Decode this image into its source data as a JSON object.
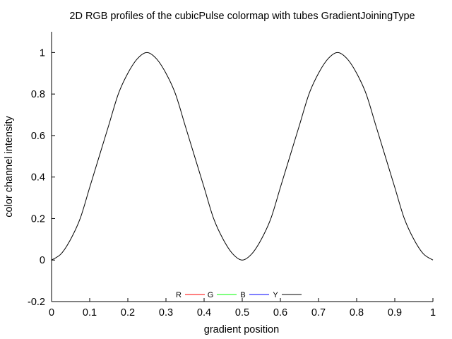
{
  "chart_data": {
    "type": "line",
    "title": "2D RGB profiles of the cubicPulse colormap with tubes GradientJoiningType",
    "xlabel": "gradient position",
    "ylabel": "color channel intensity",
    "xlim": [
      0,
      1
    ],
    "ylim": [
      -0.2,
      1.1
    ],
    "xticks": [
      "0",
      "0.1",
      "0.2",
      "0.3",
      "0.4",
      "0.5",
      "0.6",
      "0.7",
      "0.8",
      "0.9",
      "1"
    ],
    "yticks": [
      "-0.2",
      "0",
      "0.2",
      "0.4",
      "0.6",
      "0.8",
      "1"
    ],
    "grid": false,
    "legend_position": "bottom-center",
    "series": [
      {
        "name": "R",
        "color": "#ff0000",
        "x": [
          0,
          1
        ],
        "y": [
          0,
          0
        ],
        "visible": false
      },
      {
        "name": "G",
        "color": "#00ff00",
        "x": [
          0,
          1
        ],
        "y": [
          0,
          0
        ],
        "visible": false
      },
      {
        "name": "B",
        "color": "#0000ff",
        "x": [
          0,
          1
        ],
        "y": [
          0,
          0
        ],
        "visible": false
      },
      {
        "name": "Y",
        "color": "#000000",
        "visible": true,
        "x": [
          0,
          0.025,
          0.05,
          0.075,
          0.1,
          0.125,
          0.15,
          0.175,
          0.2,
          0.225,
          0.25,
          0.275,
          0.3,
          0.325,
          0.35,
          0.375,
          0.4,
          0.425,
          0.45,
          0.475,
          0.5,
          0.525,
          0.55,
          0.575,
          0.6,
          0.625,
          0.65,
          0.675,
          0.7,
          0.725,
          0.75,
          0.775,
          0.8,
          0.825,
          0.85,
          0.875,
          0.9,
          0.925,
          0.95,
          0.975,
          1
        ],
        "y": [
          0,
          0.03,
          0.1,
          0.2,
          0.35,
          0.5,
          0.65,
          0.8,
          0.9,
          0.97,
          1,
          0.97,
          0.9,
          0.8,
          0.65,
          0.5,
          0.35,
          0.2,
          0.1,
          0.03,
          0,
          0.03,
          0.1,
          0.2,
          0.35,
          0.5,
          0.65,
          0.8,
          0.9,
          0.97,
          1,
          0.97,
          0.9,
          0.8,
          0.65,
          0.5,
          0.35,
          0.2,
          0.1,
          0.03,
          0
        ]
      }
    ]
  }
}
